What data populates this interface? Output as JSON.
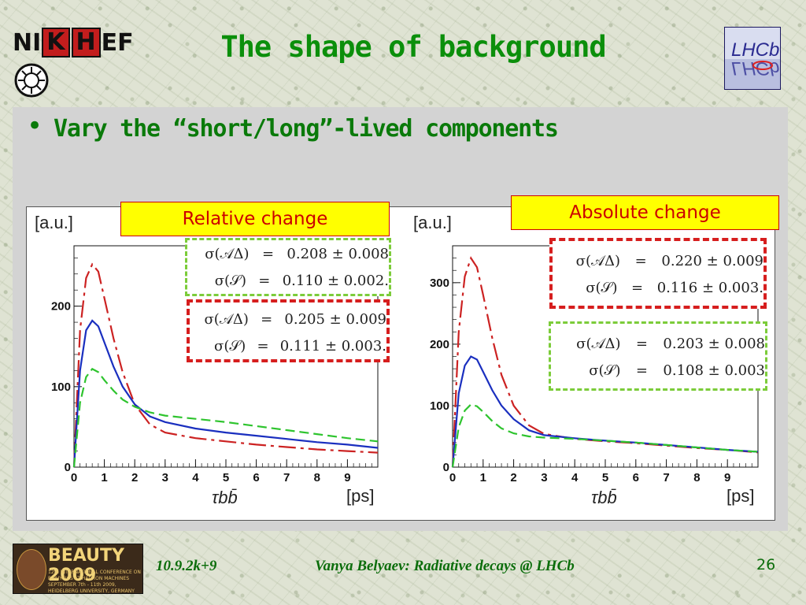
{
  "slide": {
    "title": "The shape of background",
    "bullet": "Vary the “short/long”-lived components",
    "colors": {
      "title": "#0b8f0b",
      "panel": "#d3d3d3",
      "tag_bg": "#ffff00",
      "tag_text": "#cc0000"
    }
  },
  "logos": {
    "nikhef": {
      "prefix": "NI",
      "boxed_k": "K",
      "boxed_h": "H",
      "suffix": "EF"
    },
    "lhcb": "LHCb",
    "beauty": {
      "title": "BEAUTY 2009",
      "subtitle": "12th INTERNATIONAL CONFERENCE ON B-PHYSICS AT HADRON MACHINES SEPTEMBER 7th - 11th 2009, HEIDELBERG UNIVERSITY, GERMANY"
    }
  },
  "tags": {
    "relative": "Relative change",
    "absolute": "Absolute change"
  },
  "eq_left_green": [
    {
      "lhs": "σ(𝒜Δ)",
      "eq": "=",
      "rhs": "0.208 ± 0.008"
    },
    {
      "lhs": "σ(𝒮)",
      "eq": "=",
      "rhs": "0.110 ± 0.002."
    }
  ],
  "eq_left_red": [
    {
      "lhs": "σ(𝒜Δ)",
      "eq": "=",
      "rhs": "0.205 ± 0.009"
    },
    {
      "lhs": "σ(𝒮)",
      "eq": "=",
      "rhs": "0.111 ± 0.003."
    }
  ],
  "eq_right_red": [
    {
      "lhs": "σ(𝒜Δ)",
      "eq": "=",
      "rhs": "0.220 ± 0.009"
    },
    {
      "lhs": "σ(𝒮)",
      "eq": "=",
      "rhs": "0.116 ± 0.003."
    }
  ],
  "eq_right_green": [
    {
      "lhs": "σ(𝒜Δ)",
      "eq": "=",
      "rhs": "0.203 ± 0.008"
    },
    {
      "lhs": "σ(𝒮)",
      "eq": "=",
      "rhs": "0.108 ± 0.003"
    }
  ],
  "chart_data": [
    {
      "type": "line",
      "ylabel": "[a.u.]",
      "xlabel": "τbb̄",
      "xunit": "[ps]",
      "xlim": [
        0,
        10
      ],
      "ylim": [
        0,
        275
      ],
      "xticks": [
        0,
        1,
        2,
        3,
        4,
        5,
        6,
        7,
        8,
        9
      ],
      "yticks": [
        0,
        100,
        200
      ],
      "series": [
        {
          "color": "#cc2222",
          "dash": "long-dash",
          "points": [
            [
              0,
              0
            ],
            [
              0.2,
              170
            ],
            [
              0.4,
              235
            ],
            [
              0.6,
              252
            ],
            [
              0.8,
              243
            ],
            [
              1.0,
              210
            ],
            [
              1.3,
              160
            ],
            [
              1.6,
              118
            ],
            [
              2.0,
              78
            ],
            [
              2.5,
              53
            ],
            [
              3.0,
              43
            ],
            [
              4.0,
              36
            ],
            [
              5.0,
              32
            ],
            [
              6.0,
              28
            ],
            [
              7.0,
              25
            ],
            [
              8.0,
              22
            ],
            [
              9.0,
              20
            ],
            [
              10.0,
              18
            ]
          ]
        },
        {
          "color": "#1a2fbf",
          "dash": "solid",
          "points": [
            [
              0,
              0
            ],
            [
              0.2,
              120
            ],
            [
              0.4,
              170
            ],
            [
              0.6,
              182
            ],
            [
              0.8,
              175
            ],
            [
              1.0,
              155
            ],
            [
              1.3,
              125
            ],
            [
              1.6,
              100
            ],
            [
              2.0,
              78
            ],
            [
              2.5,
              63
            ],
            [
              3.0,
              56
            ],
            [
              4.0,
              48
            ],
            [
              5.0,
              43
            ],
            [
              6.0,
              39
            ],
            [
              7.0,
              35
            ],
            [
              8.0,
              31
            ],
            [
              9.0,
              28
            ],
            [
              10.0,
              24
            ]
          ]
        },
        {
          "color": "#2ec42e",
          "dash": "dash",
          "points": [
            [
              0,
              0
            ],
            [
              0.2,
              80
            ],
            [
              0.4,
              112
            ],
            [
              0.6,
              122
            ],
            [
              0.8,
              118
            ],
            [
              1.0,
              108
            ],
            [
              1.3,
              95
            ],
            [
              1.6,
              84
            ],
            [
              2.0,
              75
            ],
            [
              2.5,
              68
            ],
            [
              3.0,
              64
            ],
            [
              4.0,
              60
            ],
            [
              5.0,
              56
            ],
            [
              6.0,
              51
            ],
            [
              7.0,
              46
            ],
            [
              8.0,
              41
            ],
            [
              9.0,
              36
            ],
            [
              10.0,
              32
            ]
          ]
        }
      ]
    },
    {
      "type": "line",
      "ylabel": "[a.u.]",
      "xlabel": "τbb̄",
      "xunit": "[ps]",
      "xlim": [
        0,
        10
      ],
      "ylim": [
        0,
        360
      ],
      "xticks": [
        0,
        1,
        2,
        3,
        4,
        5,
        6,
        7,
        8,
        9
      ],
      "yticks": [
        0,
        100,
        200,
        300
      ],
      "series": [
        {
          "color": "#cc2222",
          "dash": "long-dash",
          "points": [
            [
              0,
              0
            ],
            [
              0.2,
              220
            ],
            [
              0.4,
              310
            ],
            [
              0.6,
              340
            ],
            [
              0.8,
              325
            ],
            [
              1.0,
              280
            ],
            [
              1.3,
              210
            ],
            [
              1.6,
              150
            ],
            [
              2.0,
              100
            ],
            [
              2.5,
              68
            ],
            [
              3.0,
              54
            ],
            [
              4.0,
              46
            ],
            [
              5.0,
              42
            ],
            [
              6.0,
              39
            ],
            [
              7.0,
              35
            ],
            [
              8.0,
              31
            ],
            [
              9.0,
              28
            ],
            [
              10.0,
              24
            ]
          ]
        },
        {
          "color": "#1a2fbf",
          "dash": "solid",
          "points": [
            [
              0,
              0
            ],
            [
              0.2,
              120
            ],
            [
              0.4,
              165
            ],
            [
              0.6,
              180
            ],
            [
              0.8,
              175
            ],
            [
              1.0,
              155
            ],
            [
              1.3,
              125
            ],
            [
              1.6,
              100
            ],
            [
              2.0,
              78
            ],
            [
              2.5,
              60
            ],
            [
              3.0,
              52
            ],
            [
              4.0,
              47
            ],
            [
              5.0,
              43
            ],
            [
              6.0,
              40
            ],
            [
              7.0,
              36
            ],
            [
              8.0,
              32
            ],
            [
              9.0,
              28
            ],
            [
              10.0,
              25
            ]
          ]
        },
        {
          "color": "#2ec42e",
          "dash": "dash",
          "points": [
            [
              0,
              0
            ],
            [
              0.2,
              65
            ],
            [
              0.4,
              92
            ],
            [
              0.6,
              102
            ],
            [
              0.8,
              99
            ],
            [
              1.0,
              90
            ],
            [
              1.3,
              75
            ],
            [
              1.6,
              63
            ],
            [
              2.0,
              55
            ],
            [
              2.5,
              50
            ],
            [
              3.0,
              48
            ],
            [
              4.0,
              46
            ],
            [
              5.0,
              43
            ],
            [
              6.0,
              40
            ],
            [
              7.0,
              36
            ],
            [
              8.0,
              32
            ],
            [
              9.0,
              28
            ],
            [
              10.0,
              25
            ]
          ]
        }
      ]
    }
  ],
  "footer": {
    "date": "10.9.2k+9",
    "author": "Vanya Belyaev: Radiative decays @ LHCb",
    "page": "26"
  }
}
